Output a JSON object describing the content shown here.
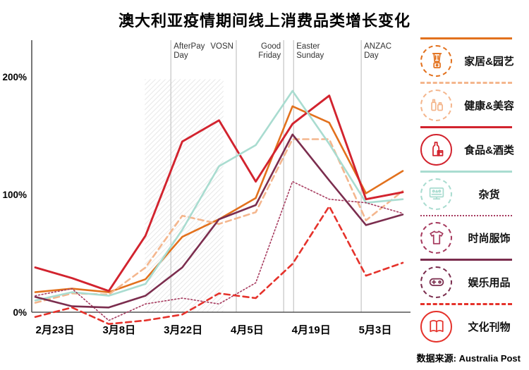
{
  "title": "澳大利亚疫情期间线上消费品类增长变化",
  "source": "数据来源: Australia Post",
  "chart_data": {
    "type": "line",
    "x_labels": [
      "2月23日",
      "3月8日",
      "3月22日",
      "4月5日",
      "4月19日",
      "5月3日"
    ],
    "x_label_indices": [
      0,
      2,
      4,
      6,
      8,
      10
    ],
    "points_per_series": 11,
    "y_ticks": [
      {
        "value": 0,
        "label": "0%"
      },
      {
        "value": 100,
        "label": "100%"
      },
      {
        "value": 200,
        "label": "200%"
      }
    ],
    "ylim": [
      -15,
      215
    ],
    "grid": "off",
    "legend_position": "right",
    "events": [
      {
        "name": "AfterPay Day",
        "lines": [
          "AfterPay",
          "Day"
        ],
        "x_index": 3.69,
        "label_side": "right"
      },
      {
        "name": "VOSN",
        "lines": [
          "VOSN"
        ],
        "x_index": 5.47,
        "label_side": "left"
      },
      {
        "name": "Good Friday",
        "lines": [
          "Good",
          "Friday"
        ],
        "x_index": 6.76,
        "label_side": "left"
      },
      {
        "name": "Easter Sunday",
        "lines": [
          "Easter",
          "Sunday"
        ],
        "x_index": 7.03,
        "label_side": "right"
      },
      {
        "name": "ANZAC Day",
        "lines": [
          "ANZAC",
          "Day"
        ],
        "x_index": 8.87,
        "label_side": "right"
      }
    ],
    "hatch_band": {
      "from_index": 2.98,
      "to_index": 5.12,
      "top_value": 198,
      "bottom_value": 0
    },
    "series": [
      {
        "name": "家居&园艺",
        "slug": "home-garden",
        "icon": "blender-icon",
        "color": "#e2711d",
        "line_style": "solid",
        "circle_style": "dashed",
        "values": [
          17,
          20,
          17,
          28,
          64,
          79,
          97,
          175,
          161,
          101,
          120
        ]
      },
      {
        "name": "健康&美容",
        "slug": "health-beauty",
        "icon": "cosmetics-icon",
        "color": "#f4b68d",
        "line_style": "dashed",
        "circle_style": "dashed",
        "values": [
          8,
          16,
          15,
          38,
          82,
          75,
          85,
          147,
          147,
          78,
          103
        ]
      },
      {
        "name": "食品&酒类",
        "slug": "food-alcohol",
        "icon": "wine-bottle-icon",
        "color": "#d2232e",
        "line_style": "solid",
        "circle_style": "solid",
        "values": [
          38,
          29,
          18,
          65,
          145,
          163,
          111,
          160,
          184,
          96,
          102
        ]
      },
      {
        "name": "杂货",
        "slug": "groceries",
        "icon": "monitor-icon",
        "color": "#a9dcd0",
        "line_style": "solid",
        "circle_style": "dashed",
        "values": [
          10,
          17,
          14,
          24,
          70,
          124,
          142,
          188,
          143,
          93,
          96
        ]
      },
      {
        "name": "时尚服饰",
        "slug": "fashion",
        "icon": "tshirt-icon",
        "color": "#a63a5e",
        "line_style": "dotted",
        "circle_style": "dashed",
        "values": [
          14,
          20,
          -7,
          7,
          12,
          7,
          25,
          111,
          96,
          93,
          84
        ]
      },
      {
        "name": "娱乐用品",
        "slug": "entertainment",
        "icon": "controller-icon",
        "color": "#7b2d4e",
        "line_style": "solid",
        "circle_style": "dashed",
        "values": [
          13,
          5,
          4,
          14,
          38,
          79,
          91,
          151,
          112,
          74,
          83
        ]
      },
      {
        "name": "文化刊物",
        "slug": "culture-books",
        "icon": "book-icon",
        "color": "#e5322b",
        "line_style": "dashed",
        "circle_style": "solid",
        "values": [
          -4,
          4,
          -10,
          -7,
          -2,
          16,
          12,
          41,
          90,
          31,
          42
        ]
      }
    ]
  }
}
